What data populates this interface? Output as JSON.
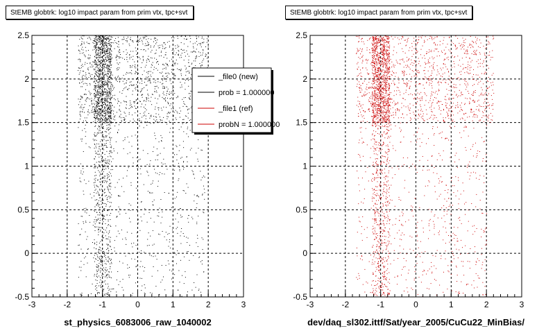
{
  "chart_data": [
    {
      "type": "scatter",
      "title": "StEMB globtrk: log10 impact param from prim vtx, tpc+svt",
      "xlabel": "st_physics_6083006_raw_1040002",
      "ylabel": "",
      "xlim": [
        -3,
        3
      ],
      "ylim": [
        -0.5,
        2.5
      ],
      "x_ticks": [
        "-3",
        "-2",
        "-1",
        "0",
        "1",
        "2",
        "3"
      ],
      "y_ticks": [
        "-0.5",
        "0",
        "0.5",
        "1",
        "1.5",
        "2",
        "2.5"
      ],
      "grid": true,
      "marker_color": "#000000",
      "density_bands": [
        {
          "x_range": [
            -1.7,
            2.0
          ],
          "y_range": [
            1.5,
            2.5
          ],
          "relative_density": 1.0
        },
        {
          "x_range": [
            -1.7,
            1.9
          ],
          "y_range": [
            -0.5,
            1.5
          ],
          "relative_density": 0.25
        }
      ],
      "legend": {
        "placement": "top-right",
        "entries": [
          {
            "label": "_file0 (new)",
            "color": "#000000"
          },
          {
            "label": "prob = 1.000000",
            "color": "#000000"
          },
          {
            "label": "_file1 (ref)",
            "color": "#cc0000"
          },
          {
            "label": "probN = 1.000000",
            "color": "#cc0000"
          }
        ]
      }
    },
    {
      "type": "scatter",
      "title": "StEMB globtrk: log10 impact param from prim vtx, tpc+svt",
      "xlabel": "dev/daq_sl302.ittf/Sat/year_2005/CuCu22_MinBias/",
      "ylabel": "",
      "xlim": [
        -3,
        3
      ],
      "ylim": [
        -0.5,
        2.5
      ],
      "x_ticks": [
        "-3",
        "-2",
        "-1",
        "0",
        "1",
        "2",
        "3"
      ],
      "y_ticks": [
        "-0.5",
        "0",
        "0.5",
        "1",
        "1.5",
        "2",
        "2.5"
      ],
      "grid": true,
      "marker_color": "#cc0000",
      "density_bands": [
        {
          "x_range": [
            -1.7,
            2.2
          ],
          "y_range": [
            1.5,
            2.5
          ],
          "relative_density": 1.0
        },
        {
          "x_range": [
            -1.7,
            2.0
          ],
          "y_range": [
            -0.5,
            1.5
          ],
          "relative_density": 0.25
        }
      ]
    }
  ]
}
